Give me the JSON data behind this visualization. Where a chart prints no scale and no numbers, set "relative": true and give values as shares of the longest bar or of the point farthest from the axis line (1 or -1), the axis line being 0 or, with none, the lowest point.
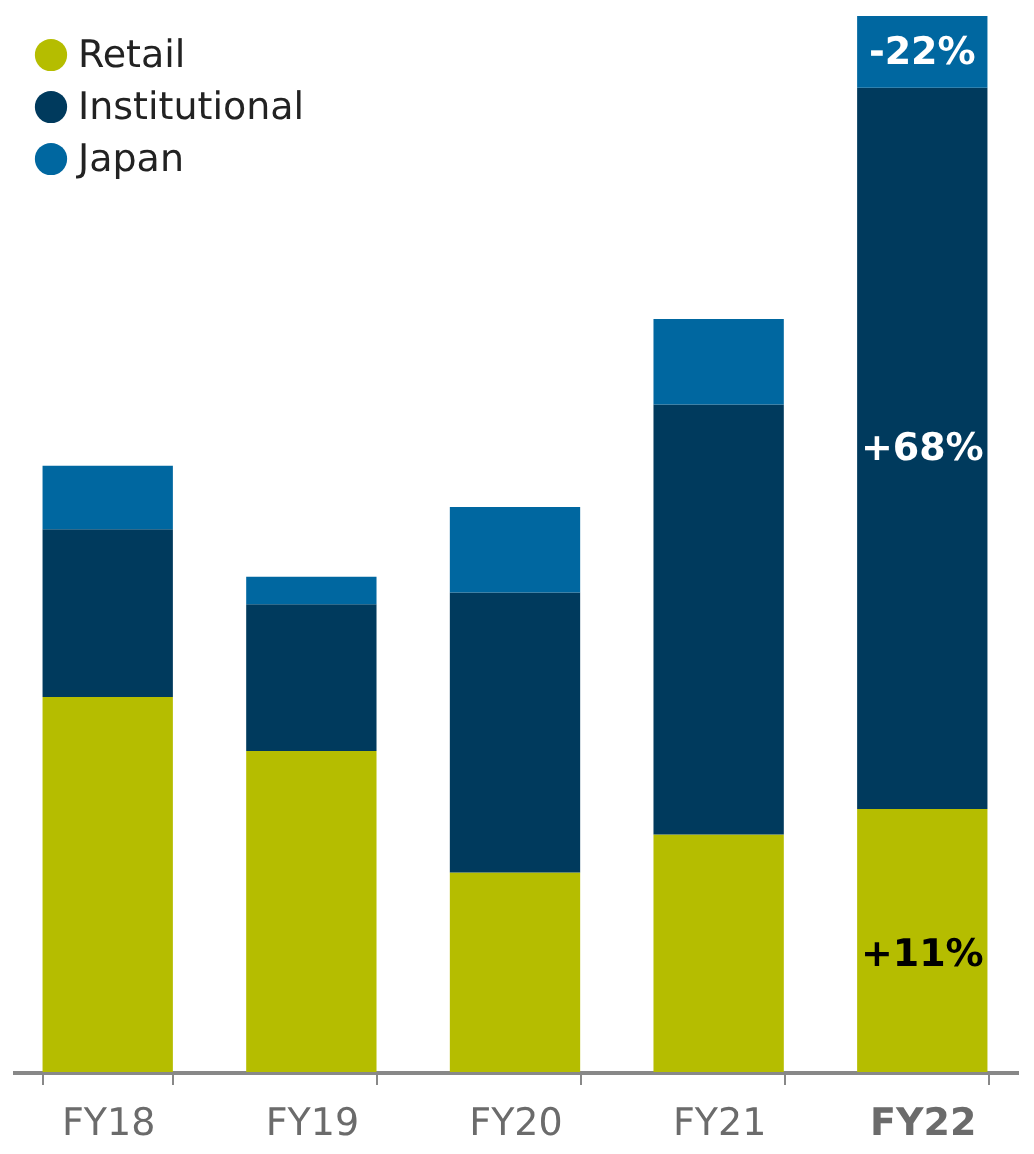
{
  "chart_data": {
    "type": "bar",
    "stacked": true,
    "relative": true,
    "legend": "top left",
    "categories": [
      "FY18",
      "FY19",
      "FY20",
      "FY21",
      "FY22"
    ],
    "series": [
      {
        "name": "Retail",
        "color": "#b5bd00",
        "values": [
          0.355,
          0.304,
          0.189,
          0.225,
          0.249
        ]
      },
      {
        "name": "Institutional",
        "color": "#003a5d",
        "values": [
          0.159,
          0.139,
          0.265,
          0.407,
          0.683
        ]
      },
      {
        "name": "Japan",
        "color": "#0067a0",
        "values": [
          0.06,
          0.026,
          0.081,
          0.081,
          0.068
        ]
      }
    ],
    "annotations": [
      "+11%",
      "+68%",
      "-22%"
    ]
  }
}
